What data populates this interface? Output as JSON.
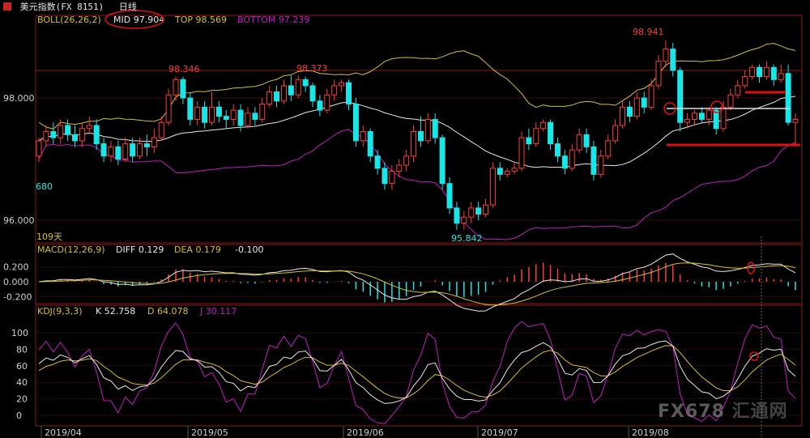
{
  "window": {
    "title": "美元指数(FX 8151)",
    "period": "日线"
  },
  "colors": {
    "up": "#ff3b3b",
    "down": "#19e6e6",
    "mid": "#e8e8e8",
    "top": "#d4c21a",
    "bottom": "#c418c8",
    "panel_border": "#8b1a1a",
    "axis_text": "#cfcfcf",
    "annotation": "#e01010",
    "diff": "#e8e8e8",
    "dea": "#d4c21a",
    "k": "#e8e8e8",
    "d": "#d4c21a",
    "j": "#c418c8"
  },
  "boll_header": {
    "name": "BOLL(26,26,2)",
    "mid_label": "MID",
    "mid_value": "97.904",
    "top_label": "TOP",
    "top_value": "98.569",
    "bottom_label": "BOTTOM",
    "bottom_value": "97.239"
  },
  "macd_header": {
    "name": "MACD(12,26,9)",
    "diff": "DIFF 0.129",
    "dea": "DEA 0.179",
    "macd": "-0.100"
  },
  "kdj_header": {
    "name": "KDJ(9,3,3)",
    "k": "K 52.758",
    "d": "D 64.078",
    "j": "J 30.117"
  },
  "price_labels": {
    "high1": "98.346",
    "high2": "98.373",
    "high3": "98.941",
    "low1": "95.842",
    "left_value": "680",
    "days": "109天"
  },
  "watermark": {
    "fx": "FX678",
    "cn": "汇通网"
  },
  "chart_data": [
    {
      "type": "candlestick",
      "title": "BOLL(26,26,2)",
      "x_ticks": [
        "2019/04",
        "2019/05",
        "2019/06",
        "2019/07",
        "2019/08"
      ],
      "y_ticks": [
        96.0,
        98.0
      ],
      "ylim": [
        95.6,
        99.5
      ],
      "annotations": {
        "high_1": 98.346,
        "high_2": 98.373,
        "high_3": 98.941,
        "low_1": 95.842
      },
      "candles": [
        [
          97.05,
          97.3,
          97.35,
          96.95
        ],
        [
          97.3,
          97.45,
          97.55,
          97.2
        ],
        [
          97.45,
          97.35,
          97.6,
          97.25
        ],
        [
          97.35,
          97.55,
          97.65,
          97.25
        ],
        [
          97.55,
          97.4,
          97.65,
          97.3
        ],
        [
          97.4,
          97.3,
          97.55,
          97.2
        ],
        [
          97.3,
          97.5,
          97.6,
          97.2
        ],
        [
          97.5,
          97.55,
          97.7,
          97.4
        ],
        [
          97.55,
          97.25,
          97.65,
          97.15
        ],
        [
          97.25,
          97.05,
          97.35,
          96.95
        ],
        [
          97.05,
          97.2,
          97.3,
          96.95
        ],
        [
          97.2,
          97.0,
          97.3,
          96.9
        ],
        [
          97.0,
          97.25,
          97.35,
          96.95
        ],
        [
          97.25,
          97.05,
          97.35,
          96.95
        ],
        [
          97.05,
          97.25,
          97.35,
          97.0
        ],
        [
          97.25,
          97.2,
          97.4,
          97.05
        ],
        [
          97.2,
          97.35,
          97.5,
          97.1
        ],
        [
          97.35,
          97.6,
          97.7,
          97.3
        ],
        [
          97.6,
          98.05,
          98.15,
          97.55
        ],
        [
          98.05,
          98.3,
          98.35,
          97.95
        ],
        [
          98.3,
          98.0,
          98.35,
          97.9
        ],
        [
          98.0,
          97.65,
          98.1,
          97.55
        ],
        [
          97.65,
          97.85,
          97.95,
          97.55
        ],
        [
          97.85,
          97.6,
          97.95,
          97.5
        ],
        [
          97.6,
          97.85,
          98.1,
          97.55
        ],
        [
          97.85,
          97.7,
          97.95,
          97.6
        ],
        [
          97.7,
          97.65,
          97.8,
          97.5
        ],
        [
          97.65,
          97.8,
          97.9,
          97.55
        ],
        [
          97.8,
          97.55,
          97.9,
          97.45
        ],
        [
          97.55,
          97.75,
          97.85,
          97.5
        ],
        [
          97.75,
          97.65,
          97.85,
          97.55
        ],
        [
          97.65,
          97.9,
          98.0,
          97.6
        ],
        [
          97.9,
          98.1,
          98.2,
          97.85
        ],
        [
          98.1,
          97.95,
          98.2,
          97.85
        ],
        [
          97.95,
          98.2,
          98.3,
          97.9
        ],
        [
          98.2,
          98.05,
          98.37,
          97.95
        ],
        [
          98.05,
          98.3,
          98.37,
          98.0
        ],
        [
          98.3,
          98.2,
          98.35,
          98.1
        ],
        [
          98.2,
          97.95,
          98.25,
          97.85
        ],
        [
          97.95,
          97.8,
          98.05,
          97.7
        ],
        [
          97.8,
          98.05,
          98.15,
          97.75
        ],
        [
          98.05,
          98.2,
          98.3,
          97.95
        ],
        [
          98.2,
          98.25,
          98.3,
          98.1
        ],
        [
          98.25,
          97.9,
          98.3,
          97.8
        ],
        [
          97.9,
          97.3,
          98.0,
          97.2
        ],
        [
          97.3,
          97.45,
          97.55,
          97.2
        ],
        [
          97.45,
          97.05,
          97.5,
          96.95
        ],
        [
          97.05,
          96.85,
          97.15,
          96.75
        ],
        [
          96.85,
          96.6,
          96.95,
          96.5
        ],
        [
          96.6,
          96.8,
          96.9,
          96.5
        ],
        [
          96.8,
          96.9,
          97.0,
          96.7
        ],
        [
          96.9,
          97.05,
          97.15,
          96.8
        ],
        [
          97.05,
          97.45,
          97.55,
          96.95
        ],
        [
          97.45,
          97.3,
          97.7,
          97.2
        ],
        [
          97.3,
          97.65,
          97.75,
          97.25
        ],
        [
          97.65,
          97.35,
          97.75,
          97.25
        ],
        [
          97.35,
          96.6,
          97.4,
          96.5
        ],
        [
          96.6,
          96.2,
          96.7,
          96.1
        ],
        [
          96.2,
          95.95,
          96.3,
          95.84
        ],
        [
          95.95,
          96.05,
          96.15,
          95.85
        ],
        [
          96.05,
          96.2,
          96.3,
          95.95
        ],
        [
          96.2,
          96.1,
          96.3,
          96.0
        ],
        [
          96.1,
          96.25,
          96.35,
          96.05
        ],
        [
          96.25,
          96.85,
          96.95,
          96.2
        ],
        [
          96.85,
          96.75,
          96.95,
          96.65
        ],
        [
          96.75,
          96.8,
          96.85,
          96.7
        ],
        [
          96.8,
          96.85,
          96.95,
          96.75
        ],
        [
          96.85,
          97.35,
          97.45,
          96.8
        ],
        [
          97.35,
          97.25,
          97.5,
          97.15
        ],
        [
          97.25,
          97.5,
          97.6,
          97.2
        ],
        [
          97.5,
          97.6,
          97.65,
          97.45
        ],
        [
          97.6,
          97.25,
          97.65,
          97.15
        ],
        [
          97.25,
          97.05,
          97.35,
          96.95
        ],
        [
          97.05,
          96.85,
          97.15,
          96.75
        ],
        [
          96.85,
          97.15,
          97.25,
          96.8
        ],
        [
          97.15,
          97.4,
          97.5,
          97.1
        ],
        [
          97.4,
          97.2,
          97.5,
          97.1
        ],
        [
          97.2,
          96.75,
          97.3,
          96.65
        ],
        [
          96.75,
          97.05,
          97.15,
          96.7
        ],
        [
          97.05,
          97.3,
          97.4,
          97.0
        ],
        [
          97.3,
          97.55,
          97.65,
          97.25
        ],
        [
          97.55,
          97.85,
          97.95,
          97.5
        ],
        [
          97.85,
          97.7,
          97.95,
          97.6
        ],
        [
          97.7,
          98.0,
          98.1,
          97.65
        ],
        [
          98.0,
          97.85,
          98.1,
          97.75
        ],
        [
          97.85,
          98.2,
          98.3,
          97.8
        ],
        [
          98.2,
          98.6,
          98.7,
          98.15
        ],
        [
          98.6,
          98.8,
          98.94,
          98.5
        ],
        [
          98.8,
          98.45,
          98.9,
          98.35
        ],
        [
          98.45,
          97.6,
          98.5,
          97.45
        ],
        [
          97.6,
          97.65,
          97.75,
          97.5
        ],
        [
          97.65,
          97.75,
          97.8,
          97.55
        ],
        [
          97.75,
          97.65,
          97.85,
          97.6
        ],
        [
          97.65,
          97.8,
          97.85,
          97.55
        ],
        [
          97.8,
          97.5,
          97.85,
          97.4
        ],
        [
          97.5,
          97.85,
          97.95,
          97.45
        ],
        [
          97.85,
          98.05,
          98.15,
          97.8
        ],
        [
          98.05,
          98.2,
          98.3,
          98.0
        ],
        [
          98.2,
          98.35,
          98.45,
          98.15
        ],
        [
          98.35,
          98.5,
          98.55,
          98.3
        ],
        [
          98.5,
          98.35,
          98.55,
          98.25
        ],
        [
          98.35,
          98.5,
          98.6,
          98.3
        ],
        [
          98.5,
          98.3,
          98.55,
          98.2
        ],
        [
          98.3,
          98.4,
          98.55,
          98.25
        ],
        [
          98.4,
          97.6,
          98.55,
          97.55
        ],
        [
          97.6,
          97.65,
          97.75,
          97.2
        ]
      ]
    },
    {
      "type": "bar",
      "title": "MACD(12,26,9)",
      "y_ticks": [
        0.2,
        0.0,
        -0.2
      ],
      "ylim": [
        -0.3,
        0.38
      ],
      "series": [
        {
          "name": "MACD",
          "shape": "histogram"
        },
        {
          "name": "DIFF",
          "shape": "line"
        },
        {
          "name": "DEA",
          "shape": "line"
        }
      ],
      "last": {
        "DIFF": 0.129,
        "DEA": 0.179,
        "MACD": -0.1
      }
    },
    {
      "type": "line",
      "title": "KDJ(9,3,3)",
      "x_ticks": [
        "2019/04",
        "2019/05",
        "2019/06",
        "2019/07",
        "2019/08"
      ],
      "y_ticks": [
        100,
        80,
        60,
        40,
        20,
        0
      ],
      "ylim": [
        -12,
        122
      ],
      "series": [
        {
          "name": "K"
        },
        {
          "name": "D"
        },
        {
          "name": "J"
        }
      ],
      "last": {
        "K": 52.758,
        "D": 64.078,
        "J": 30.117
      }
    }
  ]
}
